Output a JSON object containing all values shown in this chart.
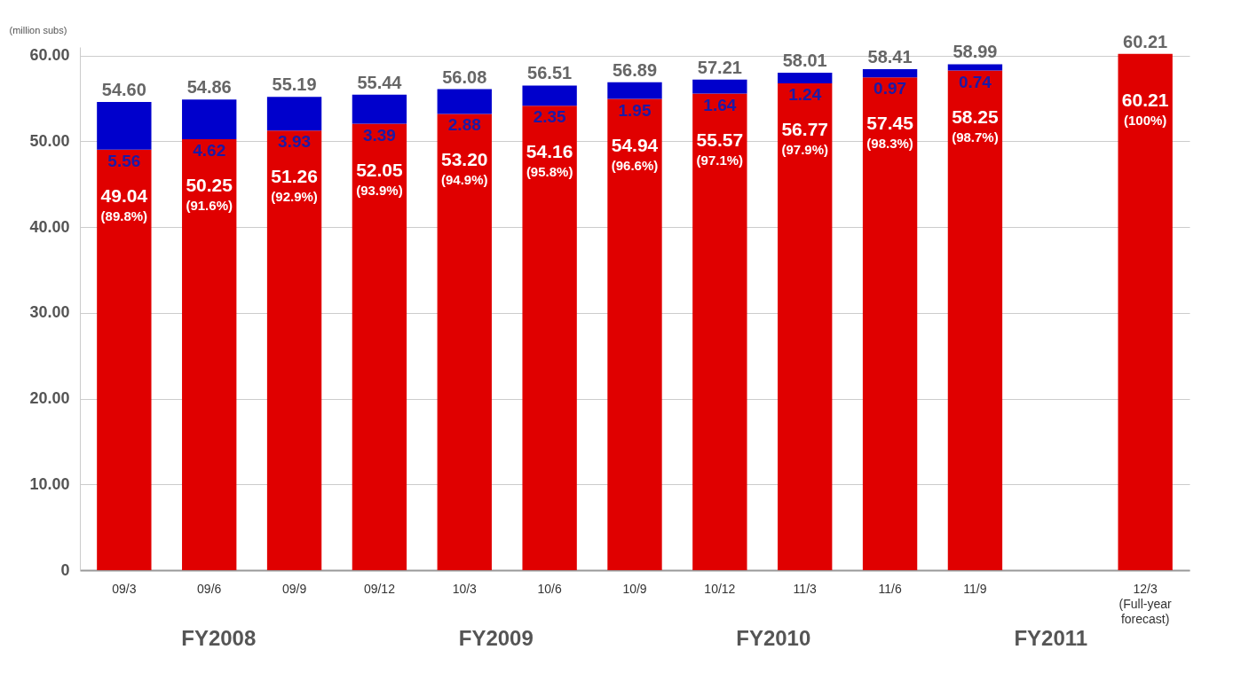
{
  "chart_data": {
    "type": "bar",
    "stacked": true,
    "ylabel": "(million subs)",
    "categories": [
      "09/3",
      "09/6",
      "09/9",
      "09/12",
      "10/3",
      "10/6",
      "10/9",
      "10/12",
      "11/3",
      "11/6",
      "11/9",
      null,
      "12/3\n(Full-year\nforecast)"
    ],
    "series": [
      {
        "color": "#e00000",
        "values": [
          49.04,
          50.25,
          51.26,
          52.05,
          53.2,
          54.16,
          54.94,
          55.57,
          56.77,
          57.45,
          58.25,
          null,
          60.21
        ],
        "value_labels": [
          "49.04\n(89.8%)",
          "50.25\n(91.6%)",
          "51.26\n(92.9%)",
          "52.05\n(93.9%)",
          "53.20\n(94.9%)",
          "54.16\n(95.8%)",
          "54.94\n(96.6%)",
          "55.57\n(97.1%)",
          "56.77\n(97.9%)",
          "57.45\n(98.3%)",
          "58.25\n(98.7%)",
          null,
          "60.21\n(100%)"
        ]
      },
      {
        "color": "#0000cc",
        "values": [
          5.56,
          4.62,
          3.93,
          3.39,
          2.88,
          2.35,
          1.95,
          1.64,
          1.24,
          0.97,
          0.74,
          null,
          null
        ],
        "data_labels": true
      }
    ],
    "totals": [
      "54.60",
      "54.86",
      "55.19",
      "55.44",
      "56.08",
      "56.51",
      "56.89",
      "57.21",
      "58.01",
      "58.41",
      "58.99",
      null,
      "60.21"
    ],
    "ylim": [
      0,
      61
    ],
    "yticks": [
      0,
      {
        "value": 10,
        "label": "10.00"
      },
      {
        "value": 20,
        "label": "20.00"
      },
      {
        "value": 30,
        "label": "30.00"
      },
      {
        "value": 40,
        "label": "40.00"
      },
      {
        "value": 50,
        "label": "50.00"
      },
      {
        "value": 60,
        "label": "60.00"
      }
    ],
    "grid": "y",
    "legend": false,
    "annotations": [
      "FY2008",
      "FY2009",
      "FY2010",
      "FY2011"
    ]
  }
}
